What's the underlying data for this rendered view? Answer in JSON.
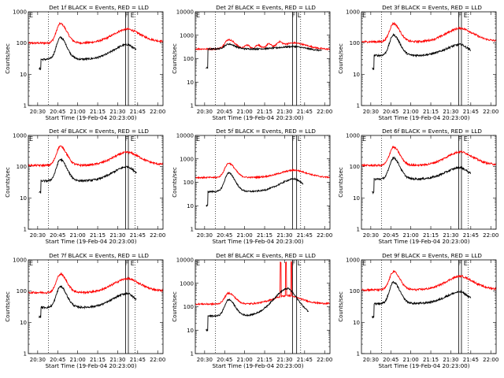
{
  "chart_data": {
    "type": "line",
    "ylabel": "Counts/sec",
    "xlabel": "Start Time (19-Feb-04 20:23:00)",
    "xticks": [
      "20:30",
      "20:45",
      "21:00",
      "21:15",
      "21:30",
      "21:45",
      "22:00"
    ],
    "xlim": [
      "20:23",
      "22:04"
    ],
    "ylim_default": [
      1,
      1000
    ],
    "y_scale": "log",
    "grid": false,
    "series_colors": {
      "events": "#000000",
      "lld": "#ff0000"
    },
    "panels": [
      {
        "title": "Det 1f BLACK = Events, RED = LLD",
        "ylim": [
          1,
          1000
        ],
        "left_flag": "E",
        "right_flags": "F E",
        "dotted_lines": [
          "20:38",
          "21:43"
        ],
        "solid_lines": [
          "21:36",
          "21:38"
        ],
        "events": {
          "start": "20:31",
          "end": "21:44",
          "base": 30,
          "peak": 150,
          "peak_time": "20:47",
          "bump": 90,
          "bump_time": "21:38",
          "tail": 50,
          "drop_start": 15
        },
        "lld": {
          "start": "20:23",
          "end": "22:04",
          "base": 100,
          "peak": 420,
          "peak_time": "20:47",
          "bump": 280,
          "bump_time": "21:38",
          "tail": 120
        }
      },
      {
        "title": "Det 2f BLACK = Events, RED = LLD",
        "ylim": [
          1,
          10000
        ],
        "left_flag": "E",
        "right_flags": "F L",
        "dotted_lines": [
          "20:38",
          "21:42"
        ],
        "solid_lines": [
          "21:36",
          "21:39"
        ],
        "events": {
          "start": "20:31",
          "end": "21:58",
          "base": 260,
          "peak": 420,
          "peak_time": "20:48",
          "bump": 330,
          "bump_time": "21:38",
          "tail": 190,
          "drop_start": 40
        },
        "lld": {
          "start": "20:23",
          "end": "22:04",
          "base": 260,
          "peak": 650,
          "peak_time": "20:48",
          "bump": 470,
          "bump_time": "21:38",
          "tail": 240,
          "ripples": [
            "21:02",
            "21:10",
            "21:18",
            "21:26"
          ]
        }
      },
      {
        "title": "Det 3f BLACK = Events, RED = LLD",
        "ylim": [
          1,
          1000
        ],
        "left_flag": "E",
        "right_flags": "F E",
        "dotted_lines": [
          "20:38",
          "21:43"
        ],
        "solid_lines": [
          "21:36",
          "21:38"
        ],
        "events": {
          "start": "20:31",
          "end": "21:45",
          "base": 40,
          "peak": 180,
          "peak_time": "20:47",
          "bump": 90,
          "bump_time": "21:38",
          "tail": 50,
          "drop_start": 15
        },
        "lld": {
          "start": "20:23",
          "end": "22:04",
          "base": 110,
          "peak": 420,
          "peak_time": "20:47",
          "bump": 300,
          "bump_time": "21:38",
          "tail": 120
        }
      },
      {
        "title": "Det 4f BLACK = Events, RED = LLD",
        "ylim": [
          1,
          1000
        ],
        "left_flag": "E",
        "right_flags": "F E",
        "dotted_lines": [
          "20:38",
          "21:43"
        ],
        "solid_lines": [
          "21:36",
          "21:38"
        ],
        "events": {
          "start": "20:31",
          "end": "21:44",
          "base": 35,
          "peak": 170,
          "peak_time": "20:47",
          "bump": 100,
          "bump_time": "21:38",
          "tail": 55,
          "drop_start": 15
        },
        "lld": {
          "start": "20:23",
          "end": "22:04",
          "base": 110,
          "peak": 450,
          "peak_time": "20:47",
          "bump": 290,
          "bump_time": "21:38",
          "tail": 120
        }
      },
      {
        "title": "Det 5f BLACK = Events, RED = LLD",
        "ylim": [
          1,
          10000
        ],
        "left_flag": "E",
        "right_flags": "F L",
        "dotted_lines": [
          "20:38",
          "21:42"
        ],
        "solid_lines": [
          "21:36",
          "21:39"
        ],
        "events": {
          "start": "20:31",
          "end": "21:44",
          "base": 40,
          "peak": 250,
          "peak_time": "20:48",
          "bump": 140,
          "bump_time": "21:38",
          "tail": 70,
          "drop_start": 10
        },
        "lld": {
          "start": "20:23",
          "end": "22:04",
          "base": 160,
          "peak": 650,
          "peak_time": "20:48",
          "bump": 330,
          "bump_time": "21:38",
          "tail": 160
        }
      },
      {
        "title": "Det 6f BLACK = Events, RED = LLD",
        "ylim": [
          1,
          1000
        ],
        "left_flag": "E",
        "right_flags": "F E",
        "dotted_lines": [
          "20:38",
          "21:43"
        ],
        "solid_lines": [
          "21:36",
          "21:38"
        ],
        "events": {
          "start": "20:31",
          "end": "21:45",
          "base": 40,
          "peak": 190,
          "peak_time": "20:47",
          "bump": 95,
          "bump_time": "21:38",
          "tail": 50,
          "drop_start": 15
        },
        "lld": {
          "start": "20:23",
          "end": "22:04",
          "base": 110,
          "peak": 420,
          "peak_time": "20:47",
          "bump": 300,
          "bump_time": "21:38",
          "tail": 120
        }
      },
      {
        "title": "Det 7f BLACK = Events, RED = LLD",
        "ylim": [
          1,
          1000
        ],
        "left_flag": "E",
        "right_flags": "F E",
        "dotted_lines": [
          "20:38",
          "21:43"
        ],
        "solid_lines": [
          "21:36",
          "21:38"
        ],
        "events": {
          "start": "20:31",
          "end": "21:44",
          "base": 30,
          "peak": 140,
          "peak_time": "20:47",
          "bump": 85,
          "bump_time": "21:38",
          "tail": 45,
          "drop_start": 15
        },
        "lld": {
          "start": "20:23",
          "end": "22:04",
          "base": 90,
          "peak": 350,
          "peak_time": "20:47",
          "bump": 250,
          "bump_time": "21:38",
          "tail": 110
        }
      },
      {
        "title": "Det 8f BLACK = Events, RED = LLD",
        "ylim": [
          1,
          10000
        ],
        "left_flag": "E",
        "right_flags": "F L",
        "dotted_lines": [
          "20:38",
          "21:42"
        ],
        "solid_lines": [
          "21:36",
          "21:39"
        ],
        "events": {
          "start": "20:31",
          "end": "21:48",
          "base": 40,
          "peak": 200,
          "peak_time": "20:48",
          "bump": 600,
          "bump_time": "21:33",
          "tail": 40,
          "drop_start": 10
        },
        "lld": {
          "start": "20:23",
          "end": "22:04",
          "base": 130,
          "peak": 380,
          "peak_time": "20:48",
          "bump": 300,
          "bump_time": "21:33",
          "tail": 140,
          "spikes": [
            "21:27",
            "21:31",
            "21:35"
          ],
          "spike_value": 8000
        }
      },
      {
        "title": "Det 9f BLACK = Events, RED = LLD",
        "ylim": [
          1,
          1000
        ],
        "left_flag": "E",
        "right_flags": "F E",
        "dotted_lines": [
          "20:38",
          "21:43"
        ],
        "solid_lines": [
          "21:36",
          "21:38"
        ],
        "events": {
          "start": "20:31",
          "end": "21:45",
          "base": 40,
          "peak": 190,
          "peak_time": "20:47",
          "bump": 95,
          "bump_time": "21:38",
          "tail": 50,
          "drop_start": 15
        },
        "lld": {
          "start": "20:23",
          "end": "22:04",
          "base": 110,
          "peak": 420,
          "peak_time": "20:47",
          "bump": 300,
          "bump_time": "21:38",
          "tail": 120
        }
      }
    ]
  }
}
